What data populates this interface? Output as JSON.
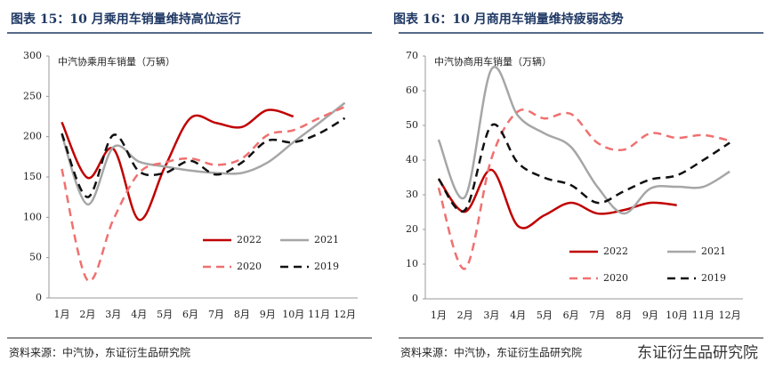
{
  "chart_data": [
    {
      "type": "line",
      "title": "图表 15：10 月乘用车销量维持高位运行",
      "axis_label": "中汽协乘用车销量（万辆）",
      "source": "资料来源：中汽协，东证衍生品研究院",
      "categories": [
        "1月",
        "2月",
        "3月",
        "4月",
        "5月",
        "6月",
        "7月",
        "8月",
        "9月",
        "10月",
        "11月",
        "12月"
      ],
      "ylim": [
        0,
        300
      ],
      "yticks": [
        0,
        50,
        100,
        150,
        200,
        250,
        300
      ],
      "legend": "lower right",
      "series": [
        {
          "name": "2022",
          "color": "#c00000",
          "style": "solid",
          "values": [
            218,
            149,
            185,
            97,
            162,
            223,
            217,
            212,
            233,
            225,
            null,
            null
          ]
        },
        {
          "name": "2021",
          "color": "#a6a6a6",
          "style": "solid",
          "values": [
            202,
            116,
            187,
            169,
            163,
            158,
            155,
            155,
            168,
            193,
            217,
            242
          ]
        },
        {
          "name": "2020",
          "color": "#f07070",
          "style": "dashed",
          "values": [
            160,
            22,
            97,
            155,
            168,
            173,
            165,
            173,
            202,
            208,
            223,
            237
          ]
        },
        {
          "name": "2019",
          "color": "#111111",
          "style": "dashed",
          "values": [
            204,
            125,
            202,
            157,
            155,
            170,
            153,
            168,
            195,
            193,
            204,
            223
          ]
        }
      ]
    },
    {
      "type": "line",
      "title": "图表 16：10 月商用车销量维持疲弱态势",
      "axis_label": "中汽协商用车销量（万辆）",
      "source": "资料来源：中汽协，东证衍生品研究院",
      "categories": [
        "1月",
        "2月",
        "3月",
        "4月",
        "5月",
        "6月",
        "7月",
        "8月",
        "9月",
        "10月",
        "11月",
        "12月"
      ],
      "ylim": [
        0,
        70
      ],
      "yticks": [
        0,
        10,
        20,
        30,
        40,
        50,
        60,
        70
      ],
      "legend": "lower right",
      "series": [
        {
          "name": "2022",
          "color": "#c00000",
          "style": "solid",
          "values": [
            34.6,
            25.1,
            37.2,
            21.0,
            24.1,
            27.7,
            24.6,
            25.6,
            27.7,
            27.0,
            null,
            null
          ]
        },
        {
          "name": "2021",
          "color": "#a6a6a6",
          "style": "solid",
          "values": [
            45.9,
            29.4,
            66.2,
            52.8,
            47.7,
            43.8,
            32.3,
            24.6,
            31.8,
            32.3,
            32.3,
            36.7
          ]
        },
        {
          "name": "2020",
          "color": "#f07070",
          "style": "dashed",
          "values": [
            32,
            8.7,
            40.5,
            54,
            52,
            53.3,
            45,
            43,
            47.7,
            46.4,
            47.2,
            45.6
          ]
        },
        {
          "name": "2019",
          "color": "#111111",
          "style": "dashed",
          "values": [
            34.6,
            25.6,
            50,
            39.2,
            34.9,
            32.8,
            27.7,
            31,
            34.4,
            35.6,
            40,
            45
          ]
        }
      ]
    }
  ],
  "watermark": "东证衍生品研究院"
}
